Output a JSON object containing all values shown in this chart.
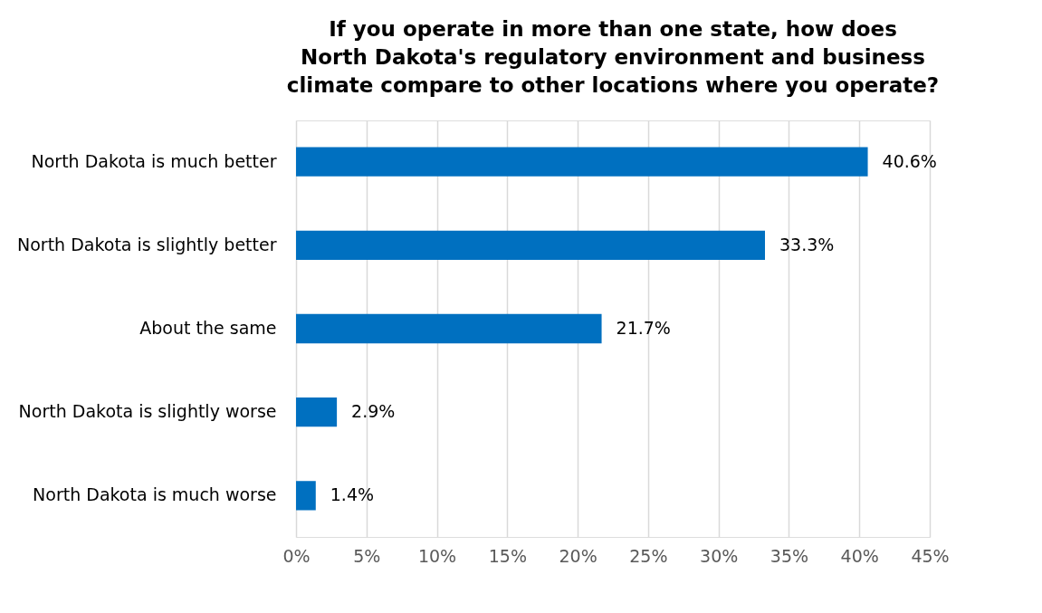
{
  "chart_data": {
    "type": "bar",
    "orientation": "horizontal",
    "title": "If you operate in more than one state, how does\nNorth Dakota's regulatory environment and business\nclimate compare to other locations where you operate?",
    "categories": [
      "North Dakota is much better",
      "North Dakota is slightly better",
      "About the same",
      "North Dakota is slightly worse",
      "North Dakota is much worse"
    ],
    "values": [
      40.6,
      33.3,
      21.7,
      2.9,
      1.4
    ],
    "value_labels": [
      "40.6%",
      "33.3%",
      "21.7%",
      "2.9%",
      "1.4%"
    ],
    "color": "#0070c0",
    "xlim": [
      0,
      45
    ],
    "xticks": [
      {
        "value": 0,
        "label": "0%"
      },
      {
        "value": 5,
        "label": "5%"
      },
      {
        "value": 10,
        "label": "10%"
      },
      {
        "value": 15,
        "label": "15%"
      },
      {
        "value": 20,
        "label": "20%"
      },
      {
        "value": 25,
        "label": "25%"
      },
      {
        "value": 30,
        "label": "30%"
      },
      {
        "value": 35,
        "label": "35%"
      },
      {
        "value": 40,
        "label": "40%"
      },
      {
        "value": 45,
        "label": "45%"
      }
    ],
    "grid": "x"
  }
}
